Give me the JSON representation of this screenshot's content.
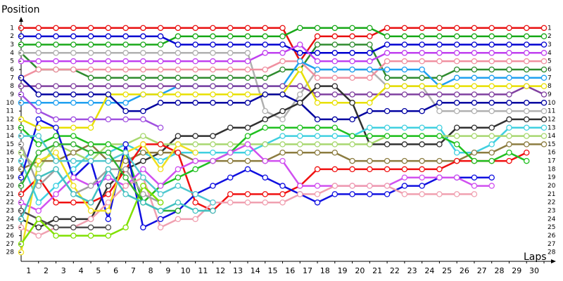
{
  "chart_data": {
    "type": "line",
    "x_label": "Laps",
    "y_label": "Position",
    "y_reversed": true,
    "x": [
      0,
      1,
      2,
      3,
      4,
      5,
      6,
      7,
      8,
      9,
      10,
      11,
      12,
      13,
      14,
      15,
      16,
      17,
      18,
      19,
      20,
      21,
      22,
      23,
      24,
      25,
      26,
      27,
      28,
      29,
      30
    ],
    "xlim": [
      0,
      30
    ],
    "xticks": [
      1,
      2,
      3,
      4,
      5,
      6,
      7,
      8,
      9,
      10,
      11,
      12,
      13,
      14,
      15,
      16,
      17,
      18,
      19,
      20,
      21,
      22,
      23,
      24,
      25,
      26,
      27,
      28,
      29,
      30
    ],
    "ylim": [
      0,
      29
    ],
    "yticks": [
      1,
      2,
      3,
      4,
      5,
      6,
      7,
      8,
      9,
      10,
      11,
      12,
      13,
      14,
      15,
      16,
      17,
      18,
      19,
      20,
      21,
      22,
      23,
      24,
      25,
      26,
      27,
      28
    ],
    "series": [
      {
        "color": "#e81010",
        "values": [
          1,
          1,
          1,
          1,
          1,
          1,
          1,
          1,
          1,
          1,
          1,
          1,
          1,
          1,
          1,
          1,
          5,
          2,
          2,
          2,
          2,
          1,
          1,
          1,
          1,
          1,
          1,
          1,
          1,
          1,
          1
        ]
      },
      {
        "color": "#18a818",
        "values": [
          3,
          3,
          3,
          3,
          3,
          3,
          3,
          3,
          3,
          2,
          2,
          2,
          2,
          2,
          2,
          2,
          1,
          1,
          1,
          1,
          1,
          2,
          2,
          2,
          2,
          2,
          2,
          2,
          2,
          2,
          2
        ]
      },
      {
        "color": "#2e8b2e",
        "values": [
          4,
          6,
          6,
          6,
          7,
          7,
          7,
          7,
          7,
          7,
          7,
          7,
          7,
          7,
          7,
          6,
          6,
          3,
          3,
          3,
          3,
          7,
          7,
          7,
          7,
          6,
          6,
          6,
          6,
          6,
          6
        ]
      },
      {
        "color": "#0000d0",
        "values": [
          2,
          2,
          2,
          2,
          2,
          2,
          2,
          2,
          2,
          3,
          3,
          3,
          3,
          3,
          3,
          3,
          4,
          4,
          4,
          4,
          4,
          3,
          3,
          3,
          3,
          3,
          3,
          3,
          3,
          3,
          3
        ]
      },
      {
        "color": "#c040f0",
        "values": [
          5,
          5,
          5,
          5,
          5,
          5,
          5,
          5,
          5,
          5,
          5,
          5,
          5,
          5,
          4,
          4,
          3,
          5,
          5,
          5,
          5,
          4,
          4,
          4,
          4,
          4,
          4,
          4,
          4,
          4,
          4
        ]
      },
      {
        "color": "#b0b0b0",
        "values": [
          4,
          4,
          4,
          4,
          4,
          4,
          4,
          4,
          4,
          4,
          4,
          4,
          4,
          4,
          11,
          12,
          9,
          6,
          6,
          6,
          6,
          8,
          8,
          8,
          11,
          11,
          11,
          11,
          11,
          11,
          11
        ]
      },
      {
        "color": "#f090a0",
        "values": [
          7,
          6,
          6,
          6,
          6,
          6,
          6,
          6,
          6,
          6,
          6,
          6,
          6,
          6,
          6,
          5,
          5,
          7,
          7,
          7,
          7,
          5,
          5,
          5,
          5,
          5,
          5,
          5,
          5,
          5,
          5
        ]
      },
      {
        "color": "#20a0f0",
        "values": [
          10,
          10,
          10,
          10,
          10,
          10,
          10,
          9,
          9,
          8,
          8,
          8,
          8,
          8,
          8,
          8,
          5,
          6,
          6,
          6,
          6,
          6,
          6,
          6,
          8,
          7,
          7,
          7,
          7,
          7,
          7
        ]
      },
      {
        "color": "#8040a0",
        "values": [
          8,
          8,
          8,
          8,
          8,
          8,
          8,
          8,
          8,
          8,
          8,
          8,
          8,
          8,
          8,
          8,
          8,
          9,
          9,
          9,
          9,
          9,
          9,
          9,
          9,
          9,
          9,
          9,
          9,
          8,
          9
        ]
      },
      {
        "color": "#e8e000",
        "values": [
          12,
          13,
          13,
          13,
          13,
          9,
          9,
          9,
          9,
          9,
          9,
          9,
          9,
          9,
          9,
          9,
          6,
          10,
          10,
          10,
          10,
          8,
          8,
          8,
          8,
          8,
          8,
          8,
          8,
          8,
          8
        ]
      },
      {
        "color": "#0000a0",
        "values": [
          7,
          9,
          9,
          9,
          9,
          9,
          11,
          11,
          10,
          10,
          10,
          10,
          10,
          10,
          9,
          9,
          10,
          12,
          12,
          12,
          11,
          11,
          11,
          11,
          10,
          10,
          10,
          10,
          10,
          10,
          10
        ]
      },
      {
        "color": "#303030",
        "values": [
          24,
          25,
          24,
          24,
          24,
          20,
          18,
          17,
          16,
          14,
          14,
          14,
          13,
          13,
          12,
          11,
          10,
          8,
          8,
          10,
          15,
          15,
          15,
          15,
          15,
          13,
          13,
          13,
          12,
          12,
          12
        ]
      },
      {
        "color": "#40d0e0",
        "values": [
          17,
          22,
          20,
          18,
          16,
          16,
          15,
          16,
          17,
          16,
          16,
          16,
          16,
          16,
          15,
          14,
          14,
          14,
          14,
          14,
          13,
          13,
          13,
          13,
          13,
          16,
          16,
          15,
          13,
          13,
          13
        ]
      },
      {
        "color": "#a8d870",
        "values": [
          16,
          18,
          15,
          16,
          17,
          15,
          15,
          14,
          15,
          15,
          15,
          15,
          15,
          15,
          15,
          15,
          15,
          15,
          15,
          15,
          15,
          14,
          14,
          14,
          14,
          14,
          14,
          14,
          14,
          14,
          14
        ]
      },
      {
        "color": "#8c7c40",
        "values": [
          18,
          17,
          17,
          16,
          15,
          17,
          17,
          16,
          16,
          16,
          17,
          17,
          17,
          17,
          17,
          16,
          16,
          16,
          16,
          17,
          17,
          17,
          17,
          17,
          17,
          17,
          16,
          16,
          15,
          15,
          15
        ]
      },
      {
        "color": "#f01010",
        "values": [
          21,
          19,
          22,
          22,
          22,
          21,
          18,
          15,
          15,
          16,
          22,
          23,
          21,
          21,
          21,
          21,
          20,
          18,
          18,
          18,
          18,
          18,
          18,
          18,
          18,
          17,
          17,
          17,
          17,
          16,
          null
        ]
      },
      {
        "color": "#20c020",
        "values": [
          13,
          15,
          14,
          14,
          15,
          15,
          16,
          22,
          20,
          19,
          18,
          17,
          16,
          14,
          13,
          13,
          13,
          13,
          13,
          14,
          14,
          14,
          14,
          14,
          14,
          15,
          17,
          17,
          16,
          17,
          null
        ]
      },
      {
        "color": "#1010e0",
        "values": [
          19,
          12,
          13,
          19,
          17,
          24,
          15,
          25,
          24,
          23,
          21,
          20,
          19,
          18,
          19,
          20,
          21,
          22,
          21,
          21,
          21,
          21,
          20,
          20,
          19,
          19,
          19,
          19,
          null,
          null,
          null
        ]
      },
      {
        "color": "#d050f0",
        "values": [
          22,
          23,
          21,
          19,
          20,
          19,
          20,
          18,
          20,
          18,
          17,
          17,
          16,
          15,
          17,
          17,
          20,
          20,
          20,
          20,
          20,
          20,
          19,
          19,
          19,
          19,
          20,
          20,
          null,
          null,
          null
        ]
      },
      {
        "color": "#f0a0b0",
        "values": [
          25,
          26,
          25,
          25,
          24,
          22,
          20,
          19,
          25,
          24,
          24,
          22,
          22,
          22,
          22,
          22,
          21,
          21,
          20,
          20,
          20,
          20,
          21,
          21,
          21,
          21,
          21,
          null,
          null,
          null,
          null
        ]
      },
      {
        "color": "#f0e020",
        "values": [
          28,
          17,
          16,
          20,
          23,
          23,
          16,
          15,
          18,
          15,
          16,
          null,
          null,
          null,
          null,
          null,
          null,
          null,
          null,
          null,
          null,
          null,
          null,
          null,
          null,
          null,
          null,
          null,
          null,
          null,
          null
        ]
      },
      {
        "color": "#50c8d0",
        "values": [
          14,
          14,
          17,
          17,
          17,
          17,
          16,
          19,
          21,
          20,
          21,
          22,
          null,
          null,
          null,
          null,
          null,
          null,
          null,
          null,
          null,
          null,
          null,
          null,
          null,
          null,
          null,
          null,
          null,
          null,
          null
        ]
      },
      {
        "color": "#a0a0a0",
        "values": [
          15,
          20,
          18,
          21,
          20,
          18,
          18,
          21,
          22,
          null,
          null,
          null,
          null,
          null,
          null,
          null,
          null,
          null,
          null,
          null,
          null,
          null,
          null,
          null,
          null,
          null,
          null,
          null,
          null,
          null,
          null
        ]
      },
      {
        "color": "#505050",
        "values": [
          23,
          24,
          25,
          25,
          25,
          25,
          null,
          null,
          null,
          null,
          null,
          null,
          null,
          null,
          null,
          null,
          null,
          null,
          null,
          null,
          null,
          null,
          null,
          null,
          null,
          null,
          null,
          null,
          null,
          null,
          null
        ]
      },
      {
        "color": "#80e000",
        "values": [
          27,
          24,
          26,
          26,
          26,
          26,
          25,
          20,
          22,
          null,
          null,
          null,
          null,
          null,
          null,
          null,
          null,
          null,
          null,
          null,
          null,
          null,
          null,
          null,
          null,
          null,
          null,
          null,
          null,
          null,
          null
        ]
      },
      {
        "color": "#30b030",
        "values": [
          20,
          16,
          15,
          15,
          16,
          16,
          19,
          22,
          23,
          23,
          null,
          null,
          null,
          null,
          null,
          null,
          null,
          null,
          null,
          null,
          null,
          null,
          null,
          null,
          null,
          null,
          null,
          null,
          null,
          null,
          null
        ]
      },
      {
        "color": "#40c0c0",
        "values": [
          24,
          19,
          18,
          21,
          22,
          18,
          21,
          22,
          23,
          22,
          23,
          23,
          null,
          null,
          null,
          null,
          null,
          null,
          null,
          null,
          null,
          null,
          null,
          null,
          null,
          null,
          null,
          null,
          null,
          null,
          null
        ]
      },
      {
        "color": "#a050e0",
        "values": [
          9,
          11,
          12,
          12,
          12,
          12,
          12,
          12,
          13,
          null,
          null,
          null,
          null,
          null,
          null,
          null,
          null,
          null,
          null,
          null,
          null,
          null,
          null,
          null,
          null,
          null,
          null,
          null,
          null,
          null,
          null
        ]
      }
    ]
  }
}
